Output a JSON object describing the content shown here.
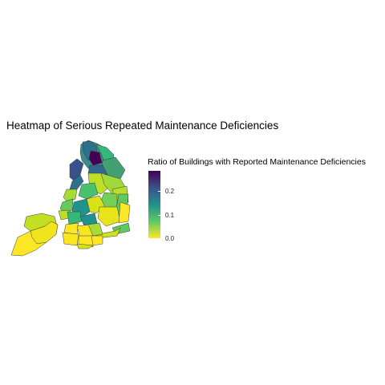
{
  "title": "Heatmap of Serious Repeated Maintenance Deficiencies",
  "chart_data": {
    "type": "heatmap",
    "title": "Heatmap of Serious Repeated Maintenance Deficiencies",
    "legend": {
      "title": "Ratio of Buildings with Reported Maintenance Deficiencies",
      "placement": "right",
      "colorscale": [
        "#fde725",
        "#5ec962",
        "#21918c",
        "#3b528b",
        "#440154"
      ],
      "range": [
        0,
        0.28
      ],
      "ticks": [
        {
          "value": 0.0,
          "label": "0.0"
        },
        {
          "value": 0.1,
          "label": "0.1"
        },
        {
          "value": 0.2,
          "label": "0.2"
        }
      ]
    }
  }
}
